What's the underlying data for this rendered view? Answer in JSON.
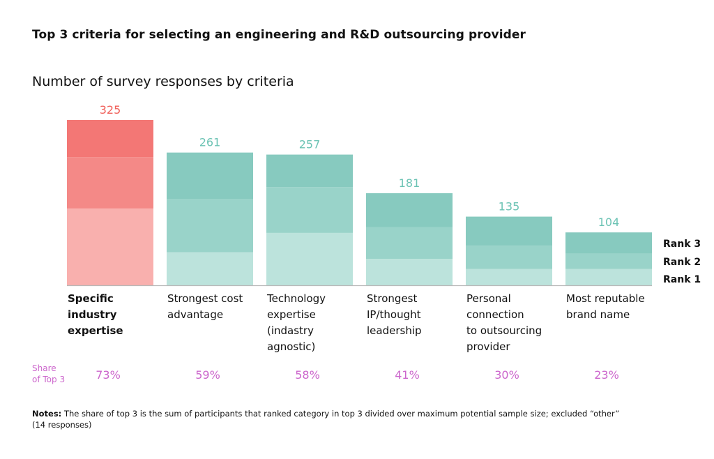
{
  "title": "Top 3 criteria for selecting an engineering and R&D outsourcing provider",
  "subtitle": "Number of survey responses by criteria",
  "notes": {
    "label": "Notes:",
    "text": "The share of top 3 is the sum of participants that ranked category in top 3 divided over maximum potential sample size; excluded “other” (14 responses)"
  },
  "colors": {
    "highlight": [
      "#f9b0ae",
      "#f48987",
      "#f37775"
    ],
    "normal": [
      "#bce3dc",
      "#99d3c9",
      "#87cabf"
    ],
    "highlight_label": "#f0605a",
    "normal_label": "#6cc3b4",
    "share": "#cc66cc",
    "axis": "#b8b8b8"
  },
  "chart_data": {
    "type": "bar",
    "stacked": true,
    "title": "Number of survey responses by criteria",
    "ylim": [
      0,
      325
    ],
    "categories": [
      [
        "Specific",
        "industry",
        "expertise"
      ],
      [
        "Strongest cost",
        "advantage"
      ],
      [
        "Technology",
        "expertise",
        "(indastry",
        "agnostic)"
      ],
      [
        "Strongest",
        "IP/thought",
        "leadership"
      ],
      [
        "Personal",
        "connection",
        "to outsourcing",
        "provider"
      ],
      [
        "Most reputable",
        "brand name"
      ]
    ],
    "highlight_index": 0,
    "totals": [
      325,
      261,
      257,
      181,
      135,
      104
    ],
    "series": [
      {
        "name": "Rank 1",
        "values": [
          151,
          65,
          103,
          52,
          32,
          32
        ]
      },
      {
        "name": "Rank 2",
        "values": [
          101,
          105,
          90,
          62,
          46,
          30
        ]
      },
      {
        "name": "Rank 3",
        "values": [
          73,
          91,
          64,
          67,
          57,
          42
        ]
      }
    ],
    "share_label": [
      "Share",
      "of Top 3"
    ],
    "share_of_top3": [
      "73%",
      "59%",
      "58%",
      "41%",
      "30%",
      "23%"
    ]
  }
}
